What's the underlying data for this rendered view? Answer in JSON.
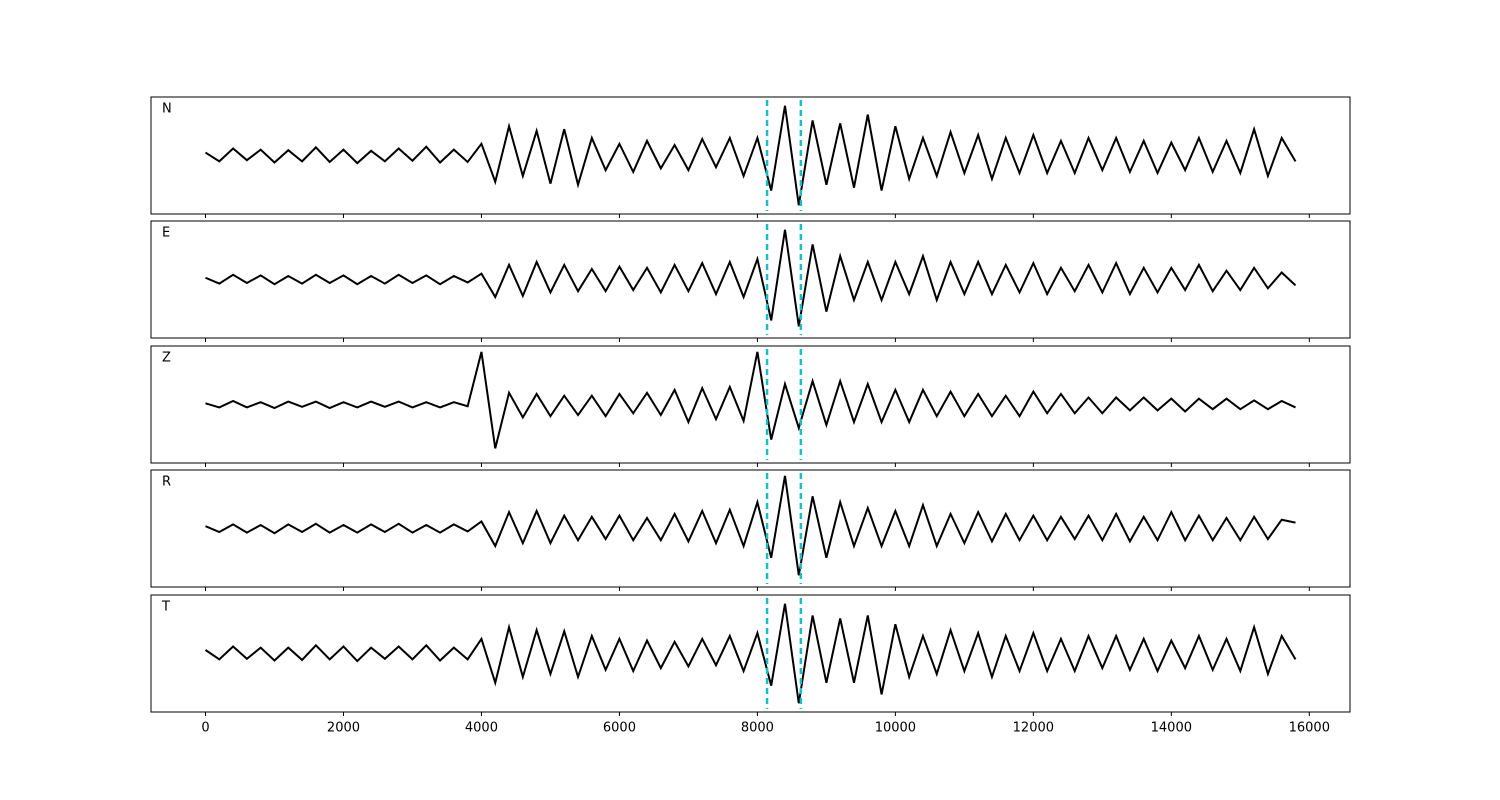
{
  "chart_data": [
    {
      "type": "line",
      "label": "N",
      "color": "#000000",
      "xlim": [
        -790,
        16590
      ],
      "ylim": [
        -1,
        1
      ],
      "vlines": [
        8140,
        8630
      ],
      "vline_color": "#17becf",
      "x": [
        0,
        200,
        400,
        600,
        800,
        1000,
        1200,
        1400,
        1600,
        1800,
        2000,
        2200,
        2400,
        2600,
        2800,
        3000,
        3200,
        3400,
        3600,
        3800,
        4000,
        4200,
        4400,
        4600,
        4800,
        5000,
        5200,
        5400,
        5600,
        5800,
        6000,
        6200,
        6400,
        6600,
        6800,
        7000,
        7200,
        7400,
        7600,
        7800,
        8000,
        8200,
        8400,
        8600,
        8800,
        9000,
        9200,
        9400,
        9600,
        9800,
        10000,
        10200,
        10400,
        10600,
        10800,
        11000,
        11200,
        11400,
        11600,
        11800,
        12000,
        12200,
        12400,
        12600,
        12800,
        13000,
        13200,
        13400,
        13600,
        13800,
        14000,
        14200,
        14400,
        14600,
        14800,
        15000,
        15200,
        15400,
        15600,
        15800
      ],
      "values": [
        0.05,
        -0.1,
        0.12,
        -0.08,
        0.1,
        -0.12,
        0.09,
        -0.1,
        0.14,
        -0.11,
        0.1,
        -0.13,
        0.08,
        -0.1,
        0.12,
        -0.09,
        0.15,
        -0.12,
        0.1,
        -0.11,
        0.2,
        -0.45,
        0.5,
        -0.35,
        0.42,
        -0.48,
        0.45,
        -0.5,
        0.3,
        -0.25,
        0.2,
        -0.28,
        0.25,
        -0.22,
        0.18,
        -0.25,
        0.28,
        -0.2,
        0.3,
        -0.35,
        0.3,
        -0.6,
        0.85,
        -0.85,
        0.6,
        -0.5,
        0.55,
        -0.55,
        0.7,
        -0.6,
        0.5,
        -0.4,
        0.3,
        -0.35,
        0.4,
        -0.3,
        0.35,
        -0.4,
        0.3,
        -0.3,
        0.35,
        -0.3,
        0.25,
        -0.3,
        0.3,
        -0.25,
        0.3,
        -0.28,
        0.25,
        -0.3,
        0.22,
        -0.25,
        0.3,
        -0.28,
        0.25,
        -0.3,
        0.45,
        -0.35,
        0.3,
        -0.1
      ]
    },
    {
      "type": "line",
      "label": "E",
      "color": "#000000",
      "xlim": [
        -790,
        16590
      ],
      "ylim": [
        -1,
        1
      ],
      "vlines": [
        8140,
        8630
      ],
      "vline_color": "#17becf",
      "x": [
        0,
        200,
        400,
        600,
        800,
        1000,
        1200,
        1400,
        1600,
        1800,
        2000,
        2200,
        2400,
        2600,
        2800,
        3000,
        3200,
        3400,
        3600,
        3800,
        4000,
        4200,
        4400,
        4600,
        4800,
        5000,
        5200,
        5400,
        5600,
        5800,
        6000,
        6200,
        6400,
        6600,
        6800,
        7000,
        7200,
        7400,
        7600,
        7800,
        8000,
        8200,
        8400,
        8600,
        8800,
        9000,
        9200,
        9400,
        9600,
        9800,
        10000,
        10200,
        10400,
        10600,
        10800,
        11000,
        11200,
        11400,
        11600,
        11800,
        12000,
        12200,
        12400,
        12600,
        12800,
        13000,
        13200,
        13400,
        13600,
        13800,
        14000,
        14200,
        14400,
        14600,
        14800,
        15000,
        15200,
        15400,
        15600,
        15800
      ],
      "values": [
        0.03,
        -0.07,
        0.08,
        -0.06,
        0.07,
        -0.08,
        0.06,
        -0.07,
        0.08,
        -0.06,
        0.07,
        -0.08,
        0.06,
        -0.07,
        0.08,
        -0.06,
        0.07,
        -0.08,
        0.06,
        -0.05,
        0.1,
        -0.3,
        0.25,
        -0.28,
        0.3,
        -0.22,
        0.25,
        -0.2,
        0.18,
        -0.2,
        0.22,
        -0.18,
        0.2,
        -0.22,
        0.25,
        -0.2,
        0.28,
        -0.25,
        0.3,
        -0.3,
        0.35,
        -0.7,
        0.85,
        -0.8,
        0.6,
        -0.55,
        0.4,
        -0.35,
        0.3,
        -0.35,
        0.3,
        -0.25,
        0.4,
        -0.35,
        0.3,
        -0.25,
        0.3,
        -0.25,
        0.25,
        -0.22,
        0.28,
        -0.25,
        0.2,
        -0.2,
        0.25,
        -0.22,
        0.28,
        -0.25,
        0.2,
        -0.22,
        0.2,
        -0.18,
        0.25,
        -0.2,
        0.15,
        -0.18,
        0.2,
        -0.15,
        0.12,
        -0.1
      ]
    },
    {
      "type": "line",
      "label": "Z",
      "color": "#000000",
      "xlim": [
        -790,
        16590
      ],
      "ylim": [
        -1,
        1
      ],
      "vlines": [
        8140,
        8630
      ],
      "vline_color": "#17becf",
      "x": [
        0,
        200,
        400,
        600,
        800,
        1000,
        1200,
        1400,
        1600,
        1800,
        2000,
        2200,
        2400,
        2600,
        2800,
        3000,
        3200,
        3400,
        3600,
        3800,
        4000,
        4200,
        4400,
        4600,
        4800,
        5000,
        5200,
        5400,
        5600,
        5800,
        6000,
        6200,
        6400,
        6600,
        6800,
        7000,
        7200,
        7400,
        7600,
        7800,
        8000,
        8200,
        8400,
        8600,
        8800,
        9000,
        9200,
        9400,
        9600,
        9800,
        10000,
        10200,
        10400,
        10600,
        10800,
        11000,
        11200,
        11400,
        11600,
        11800,
        12000,
        12200,
        12400,
        12600,
        12800,
        13000,
        13200,
        13400,
        13600,
        13800,
        14000,
        14200,
        14400,
        14600,
        14800,
        15000,
        15200,
        15400,
        15600,
        15800
      ],
      "values": [
        0.02,
        -0.05,
        0.06,
        -0.05,
        0.04,
        -0.06,
        0.05,
        -0.04,
        0.05,
        -0.06,
        0.04,
        -0.05,
        0.05,
        -0.04,
        0.05,
        -0.05,
        0.04,
        -0.05,
        0.04,
        -0.03,
        0.9,
        -0.75,
        0.2,
        -0.22,
        0.18,
        -0.2,
        0.15,
        -0.18,
        0.15,
        -0.2,
        0.18,
        -0.15,
        0.2,
        -0.18,
        0.25,
        -0.3,
        0.28,
        -0.25,
        0.3,
        -0.28,
        0.9,
        -0.6,
        0.35,
        -0.4,
        0.4,
        -0.35,
        0.4,
        -0.3,
        0.35,
        -0.3,
        0.25,
        -0.3,
        0.25,
        -0.2,
        0.22,
        -0.2,
        0.18,
        -0.2,
        0.15,
        -0.2,
        0.22,
        -0.15,
        0.18,
        -0.15,
        0.12,
        -0.15,
        0.12,
        -0.1,
        0.12,
        -0.1,
        0.1,
        -0.12,
        0.1,
        -0.08,
        0.1,
        -0.08,
        0.07,
        -0.08,
        0.06,
        -0.05
      ]
    },
    {
      "type": "line",
      "label": "R",
      "color": "#000000",
      "xlim": [
        -790,
        16590
      ],
      "ylim": [
        -1,
        1
      ],
      "vlines": [
        8140,
        8630
      ],
      "vline_color": "#17becf",
      "x": [
        0,
        200,
        400,
        600,
        800,
        1000,
        1200,
        1400,
        1600,
        1800,
        2000,
        2200,
        2400,
        2600,
        2800,
        3000,
        3200,
        3400,
        3600,
        3800,
        4000,
        4200,
        4400,
        4600,
        4800,
        5000,
        5200,
        5400,
        5600,
        5800,
        6000,
        6200,
        6400,
        6600,
        6800,
        7000,
        7200,
        7400,
        7600,
        7800,
        8000,
        8200,
        8400,
        8600,
        8800,
        9000,
        9200,
        9400,
        9600,
        9800,
        10000,
        10200,
        10400,
        10600,
        10800,
        11000,
        11200,
        11400,
        11600,
        11800,
        12000,
        12200,
        12400,
        12600,
        12800,
        13000,
        13200,
        13400,
        13600,
        13800,
        14000,
        14200,
        14400,
        14600,
        14800,
        15000,
        15200,
        15400,
        15600,
        15800
      ],
      "values": [
        0.04,
        -0.06,
        0.07,
        -0.07,
        0.06,
        -0.08,
        0.07,
        -0.06,
        0.08,
        -0.07,
        0.06,
        -0.07,
        0.07,
        -0.06,
        0.08,
        -0.07,
        0.06,
        -0.07,
        0.07,
        -0.05,
        0.12,
        -0.3,
        0.28,
        -0.25,
        0.3,
        -0.25,
        0.22,
        -0.2,
        0.2,
        -0.18,
        0.22,
        -0.2,
        0.18,
        -0.2,
        0.25,
        -0.22,
        0.3,
        -0.25,
        0.32,
        -0.3,
        0.45,
        -0.5,
        0.9,
        -0.8,
        0.55,
        -0.5,
        0.45,
        -0.3,
        0.35,
        -0.3,
        0.3,
        -0.3,
        0.4,
        -0.3,
        0.25,
        -0.25,
        0.28,
        -0.22,
        0.25,
        -0.2,
        0.22,
        -0.2,
        0.2,
        -0.18,
        0.22,
        -0.2,
        0.25,
        -0.22,
        0.2,
        -0.2,
        0.28,
        -0.2,
        0.22,
        -0.2,
        0.18,
        -0.2,
        0.2,
        -0.18,
        0.15,
        0.1
      ]
    },
    {
      "type": "line",
      "label": "T",
      "color": "#000000",
      "xlim": [
        -790,
        16590
      ],
      "ylim": [
        -1,
        1
      ],
      "vlines": [
        8140,
        8630
      ],
      "vline_color": "#17becf",
      "x": [
        0,
        200,
        400,
        600,
        800,
        1000,
        1200,
        1400,
        1600,
        1800,
        2000,
        2200,
        2400,
        2600,
        2800,
        3000,
        3200,
        3400,
        3600,
        3800,
        4000,
        4200,
        4400,
        4600,
        4800,
        5000,
        5200,
        5400,
        5600,
        5800,
        6000,
        6200,
        6400,
        6600,
        6800,
        7000,
        7200,
        7400,
        7600,
        7800,
        8000,
        8200,
        8400,
        8600,
        8800,
        9000,
        9200,
        9400,
        9600,
        9800,
        10000,
        10200,
        10400,
        10600,
        10800,
        11000,
        11200,
        11400,
        11600,
        11800,
        12000,
        12200,
        12400,
        12600,
        12800,
        13000,
        13200,
        13400,
        13600,
        13800,
        14000,
        14200,
        14400,
        14600,
        14800,
        15000,
        15200,
        15400,
        15600,
        15800
      ],
      "values": [
        0.06,
        -0.1,
        0.12,
        -0.09,
        0.1,
        -0.12,
        0.1,
        -0.11,
        0.14,
        -0.1,
        0.12,
        -0.13,
        0.1,
        -0.09,
        0.12,
        -0.1,
        0.14,
        -0.12,
        0.1,
        -0.1,
        0.25,
        -0.5,
        0.45,
        -0.4,
        0.4,
        -0.35,
        0.38,
        -0.4,
        0.3,
        -0.28,
        0.25,
        -0.3,
        0.22,
        -0.25,
        0.2,
        -0.22,
        0.25,
        -0.2,
        0.3,
        -0.3,
        0.35,
        -0.55,
        0.85,
        -0.85,
        0.65,
        -0.5,
        0.6,
        -0.5,
        0.65,
        -0.7,
        0.5,
        -0.4,
        0.3,
        -0.35,
        0.4,
        -0.3,
        0.35,
        -0.4,
        0.3,
        -0.3,
        0.35,
        -0.3,
        0.25,
        -0.3,
        0.3,
        -0.25,
        0.3,
        -0.28,
        0.25,
        -0.3,
        0.22,
        -0.25,
        0.3,
        -0.28,
        0.25,
        -0.3,
        0.45,
        -0.35,
        0.3,
        -0.1
      ],
      "xticks": [
        0,
        2000,
        4000,
        6000,
        8000,
        10000,
        12000,
        14000,
        16000
      ]
    }
  ]
}
